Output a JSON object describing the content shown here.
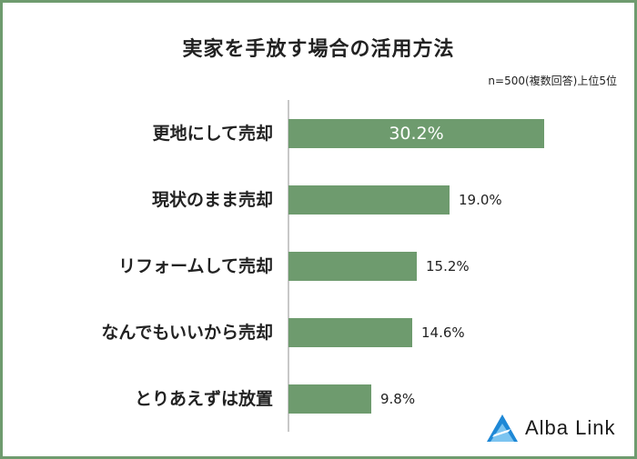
{
  "chart_data": {
    "type": "bar",
    "orientation": "horizontal",
    "title": "実家を手放す場合の活用方法",
    "note": "n=500(複数回答)上位5位",
    "categories": [
      "更地にして売却",
      "現状のまま売却",
      "リフォームして売却",
      "なんでもいいから売却",
      "とりあえずは放置"
    ],
    "values": [
      30.2,
      19.0,
      15.2,
      14.6,
      9.8
    ],
    "value_labels": [
      "30.2%",
      "19.0%",
      "15.2%",
      "14.6%",
      "9.8%"
    ],
    "bar_color": "#6e9b6e",
    "xlim": [
      0,
      30.2
    ]
  },
  "brand": {
    "name": "Alba Link",
    "logo_color": "#1e88d6"
  }
}
